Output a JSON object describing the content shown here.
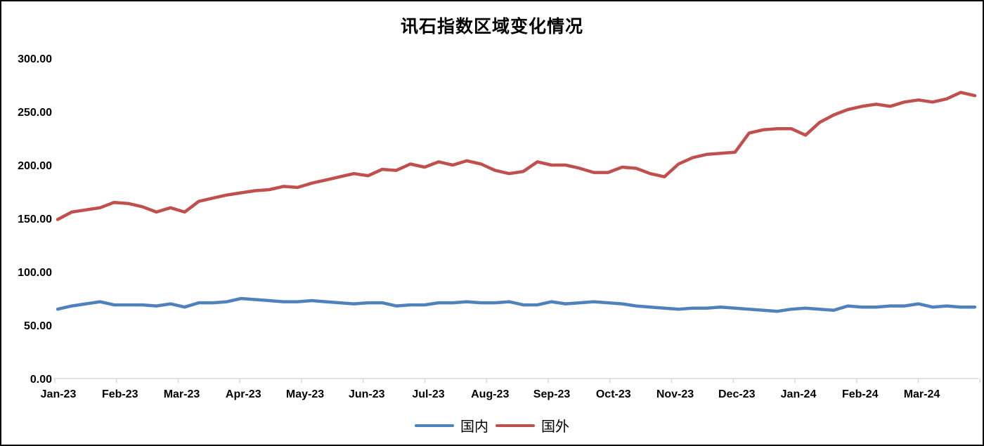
{
  "title": "讯石指数区域变化情况",
  "colors": {
    "domestic_line": "#4F81BD",
    "foreign_line": "#C0504D",
    "axis": "#D9D9D9",
    "text": "#000000",
    "background": "#FFFFFF",
    "frame_border": "#000000"
  },
  "legend": {
    "position": "bottom-center",
    "items": [
      {
        "label": "国内",
        "color": "#4F81BD"
      },
      {
        "label": "国外",
        "color": "#C0504D"
      }
    ]
  },
  "chart_data": {
    "type": "line",
    "title": "讯石指数区域变化情况",
    "xlabel": "",
    "ylabel": "",
    "ylim": [
      0,
      300
    ],
    "y_tick_labels": [
      "300.00",
      "250.00",
      "200.00",
      "150.00",
      "100.00",
      "50.00",
      "0.00"
    ],
    "x_tick_labels": [
      "Jan-23",
      "Feb-23",
      "Mar-23",
      "Apr-23",
      "May-23",
      "Jun-23",
      "Jul-23",
      "Aug-23",
      "Sep-23",
      "Oct-23",
      "Nov-23",
      "Dec-23",
      "Jan-24",
      "Feb-24",
      "Mar-24"
    ],
    "grid": false,
    "legend_position": "bottom",
    "axis_color": "#D9D9D9",
    "series": [
      {
        "name": "国内",
        "color": "#4F81BD",
        "values": [
          65,
          68,
          70,
          72,
          69,
          69,
          69,
          68,
          70,
          67,
          71,
          71,
          72,
          75,
          74,
          73,
          72,
          72,
          73,
          72,
          71,
          70,
          71,
          71,
          68,
          69,
          69,
          71,
          71,
          72,
          71,
          71,
          72,
          69,
          69,
          72,
          70,
          71,
          72,
          71,
          70,
          68,
          67,
          66,
          65,
          66,
          66,
          67,
          66,
          65,
          64,
          63,
          65,
          66,
          65,
          64,
          68,
          67,
          67,
          68,
          68,
          70,
          67,
          68,
          67,
          67
        ]
      },
      {
        "name": "国外",
        "color": "#C0504D",
        "values": [
          149,
          156,
          158,
          160,
          165,
          164,
          161,
          156,
          160,
          156,
          166,
          169,
          172,
          174,
          176,
          177,
          180,
          179,
          183,
          186,
          189,
          192,
          190,
          196,
          195,
          201,
          198,
          203,
          200,
          204,
          201,
          195,
          192,
          194,
          203,
          200,
          200,
          197,
          193,
          193,
          198,
          197,
          192,
          189,
          201,
          207,
          210,
          211,
          212,
          230,
          233,
          234,
          234,
          228,
          240,
          247,
          252,
          255,
          257,
          255,
          259,
          261,
          259,
          262,
          268,
          265
        ]
      }
    ]
  }
}
